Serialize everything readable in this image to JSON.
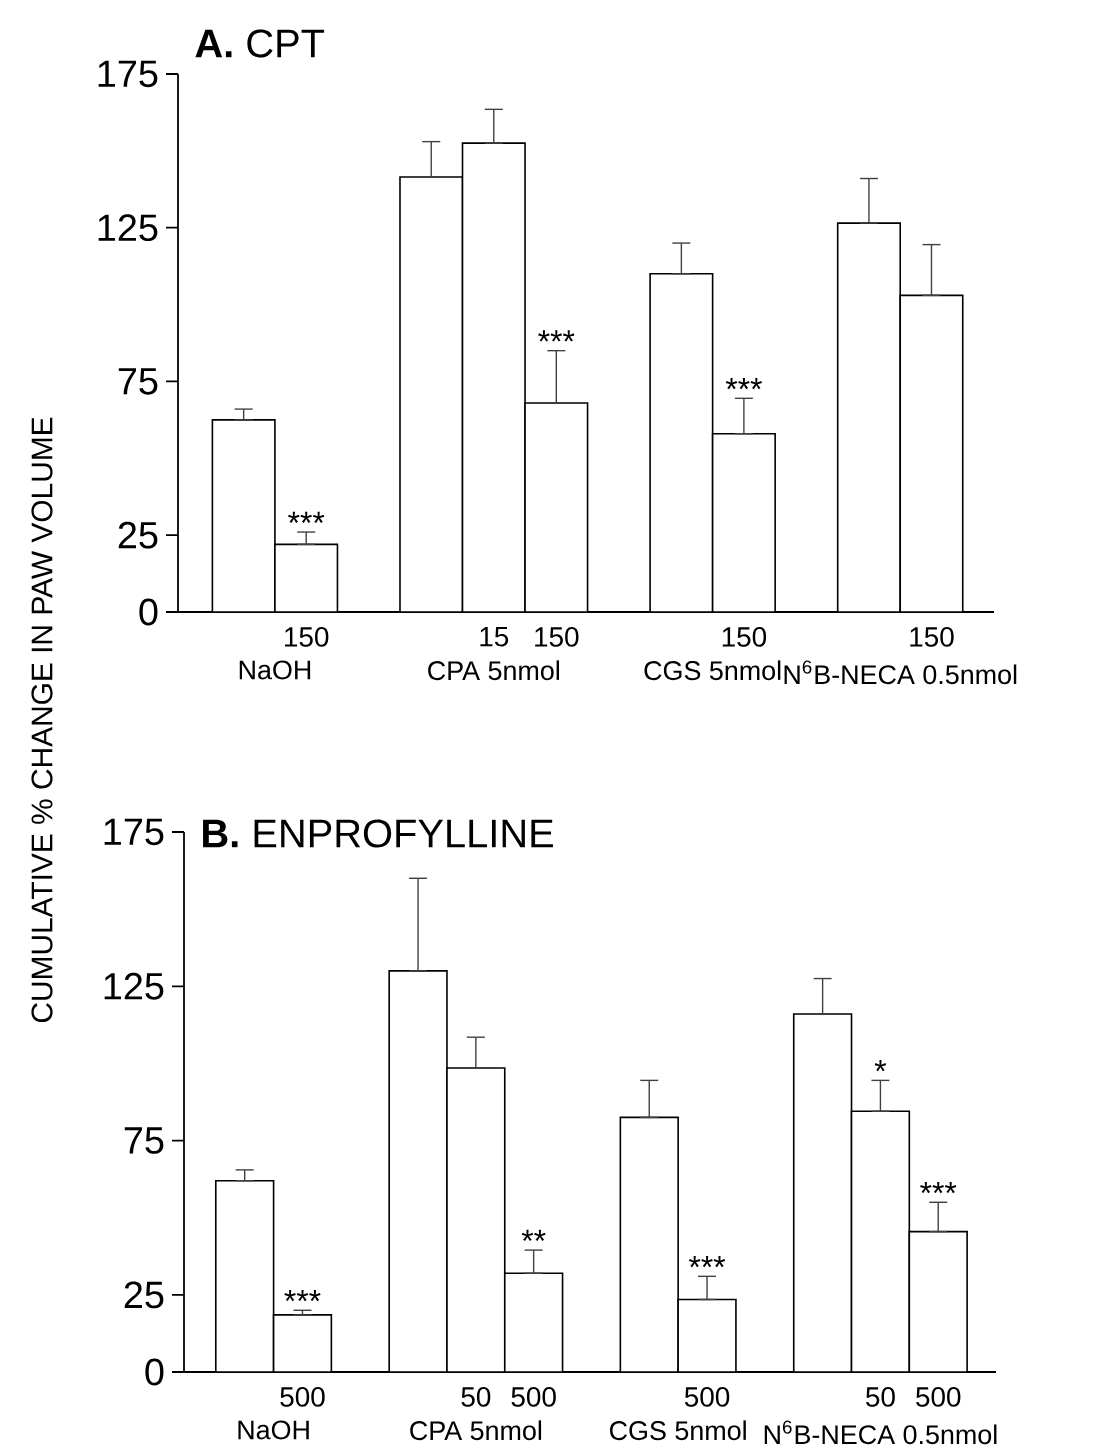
{
  "chart_data": [
    {
      "type": "bar",
      "title": "**A.** CPT",
      "ylabel": "CUMULATIVE % CHANGE IN PAW VOLUME",
      "categories": [
        null,
        "150",
        null,
        null,
        "15",
        "150",
        null,
        null,
        "150",
        null,
        null,
        "150"
      ],
      "series": [
        {
          "color": "#ffffff",
          "values": [
            62.5,
            22,
            null,
            141.5,
            152.5,
            68,
            null,
            110,
            58,
            null,
            126.5,
            103
          ],
          "errors": [
            [
              62.5,
              66
            ],
            [
              22,
              26
            ],
            null,
            [
              141.5,
              153
            ],
            [
              152.5,
              163.5
            ],
            [
              68,
              85
            ],
            null,
            [
              110,
              120
            ],
            [
              58,
              69.5
            ],
            null,
            [
              126.5,
              141
            ],
            [
              103,
              119.5
            ]
          ],
          "value_labels": [
            null,
            "***",
            null,
            null,
            null,
            "***",
            null,
            null,
            "***",
            null,
            null,
            null
          ]
        }
      ],
      "ylim": [
        0,
        175
      ],
      "yticks": [
        0,
        25,
        75,
        125,
        175
      ],
      "annotations": [
        "NaOH",
        "CPA 5nmol",
        "CGS 5nmol",
        "N$^{6}$B-NECA 0.5nmol"
      ]
    },
    {
      "type": "bar",
      "title": "**B.** ENPROFYLLINE",
      "categories": [
        null,
        "500",
        null,
        null,
        "50",
        "500",
        null,
        null,
        "500",
        null,
        null,
        "50",
        "500"
      ],
      "series": [
        {
          "color": "#ffffff",
          "values": [
            62,
            18.5,
            null,
            130,
            98.5,
            32,
            null,
            82.5,
            23.5,
            null,
            116,
            84.5,
            45.5
          ],
          "errors": [
            [
              62,
              65.5
            ],
            [
              18.5,
              20
            ],
            null,
            [
              130,
              160
            ],
            [
              98.5,
              108.5
            ],
            [
              32,
              39.5
            ],
            null,
            [
              82.5,
              94.5
            ],
            [
              23.5,
              31
            ],
            null,
            [
              116,
              127.5
            ],
            [
              84.5,
              94.5
            ],
            [
              45.5,
              55
            ]
          ],
          "value_labels": [
            null,
            "***",
            null,
            null,
            null,
            "**",
            null,
            null,
            "***",
            null,
            null,
            "*",
            "***"
          ]
        }
      ],
      "ylim": [
        0,
        175
      ],
      "yticks": [
        0,
        25,
        75,
        125,
        175
      ],
      "annotations": [
        "NaOH",
        "CPA 5nmol",
        "CGS 5nmol",
        "N$^{6}$B-NECA 0.5nmol"
      ]
    }
  ]
}
